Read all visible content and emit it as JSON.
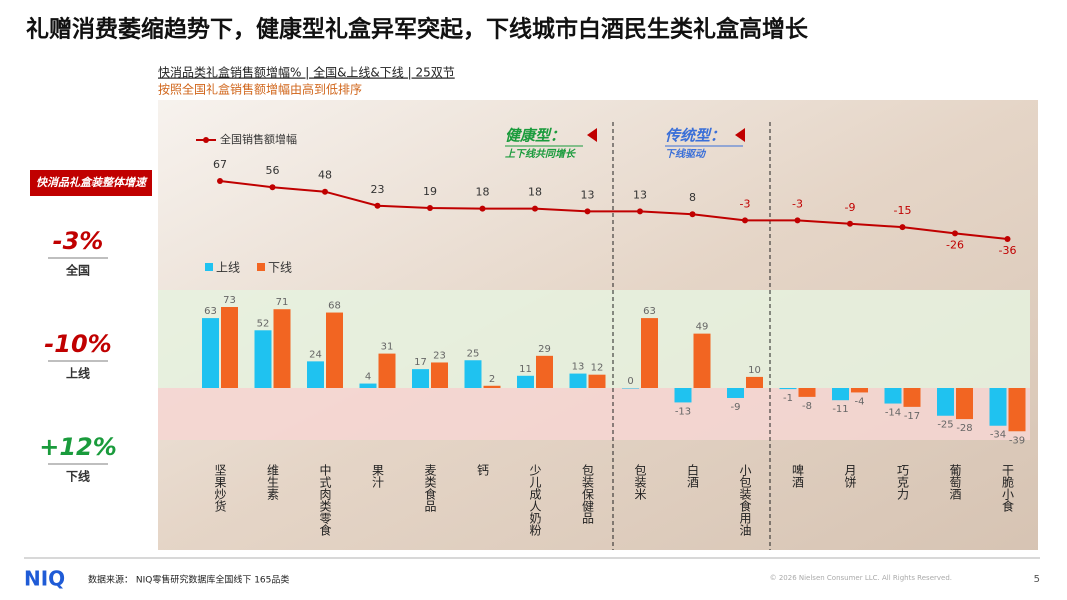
{
  "title": "礼赠消费萎缩趋势下，健康型礼盒异军突起，下线城市白酒民生类礼盒高增长",
  "subtitle": "快消品类礼盒销售额增幅% | 全国&上线&下线 | 25双节",
  "note": "按照全国礼盒销售额增幅由高到低排序",
  "kpi_panel": {
    "title": "快消品礼盒装整体增速",
    "items": [
      {
        "value": "-3%",
        "label": "全国",
        "color": "#c00000"
      },
      {
        "value": "-10%",
        "label": "上线",
        "color": "#c00000"
      },
      {
        "value": "+12%",
        "label": "下线",
        "color": "#1a9b3c"
      }
    ]
  },
  "chart_data": {
    "type": "bar",
    "categories": [
      "坚果炒货",
      "维生素",
      "中式肉类零食",
      "果汁",
      "麦类食品",
      "钙",
      "少儿成人奶粉",
      "包装保健品",
      "包装米",
      "白酒",
      "小包装食用油",
      "啤酒",
      "月饼",
      "巧克力",
      "葡萄酒",
      "干脆小食"
    ],
    "series": [
      {
        "name": "全国销售额增幅",
        "type": "line",
        "color": "#c00000",
        "values": [
          67,
          56,
          48,
          23,
          19,
          18,
          18,
          13,
          13,
          8,
          -3,
          -3,
          -9,
          -15,
          -26,
          -36
        ]
      },
      {
        "name": "上线",
        "color": "#1fc2f0",
        "values": [
          63,
          52,
          24,
          4,
          17,
          25,
          11,
          13,
          0,
          -13,
          -9,
          -1,
          -11,
          -14,
          -25,
          -34
        ]
      },
      {
        "name": "下线",
        "color": "#f26522",
        "values": [
          73,
          71,
          68,
          31,
          23,
          2,
          29,
          12,
          63,
          49,
          10,
          -8,
          -4,
          -17,
          -28,
          -39
        ]
      }
    ],
    "annotations": [
      {
        "title": "健康型：",
        "text": "上下线共同增长",
        "color": "#1a9b3c"
      },
      {
        "title": "传统型：",
        "text": "下线驱动",
        "color": "#3a6fd8"
      }
    ]
  },
  "footer": {
    "logo": "NIQ",
    "source": "数据来源： NIQ零售研究数据库全国线下 165品类",
    "copyright": "© 2026 Nielsen Consumer LLC. All Rights Reserved.",
    "page": "5"
  }
}
